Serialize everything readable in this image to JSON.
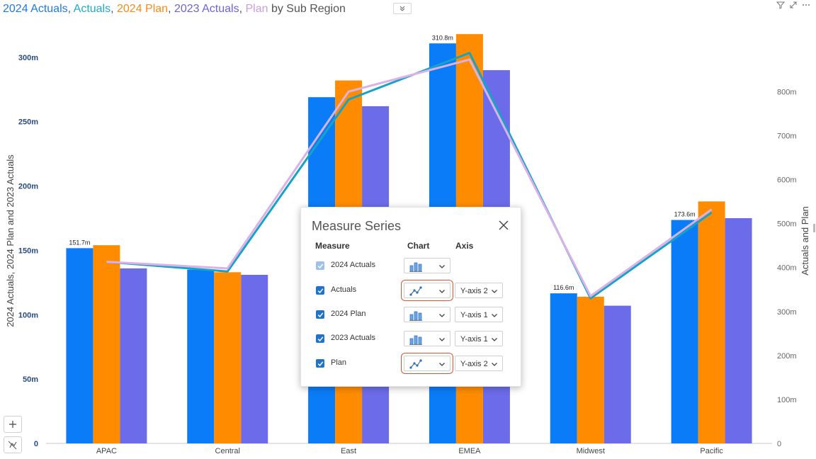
{
  "title": {
    "segments": [
      {
        "text": "2024 Actuals",
        "color": "#1f7ae0"
      },
      {
        "text": ", ",
        "color": "#555555"
      },
      {
        "text": "Actuals",
        "color": "#1faacc"
      },
      {
        "text": ", ",
        "color": "#555555"
      },
      {
        "text": "2024 Plan",
        "color": "#f28c1a"
      },
      {
        "text": ", ",
        "color": "#555555"
      },
      {
        "text": "2023 Actuals",
        "color": "#6c63d8"
      },
      {
        "text": ", ",
        "color": "#555555"
      },
      {
        "text": "Plan",
        "color": "#c99fd8"
      },
      {
        "text": " by Sub Region",
        "color": "#555555"
      }
    ]
  },
  "header_icons": [
    "chevron-double-down-icon",
    "filter-icon",
    "focus-mode-icon",
    "more-options-icon"
  ],
  "chart_data": {
    "type": "bar",
    "categories": [
      "APAC",
      "Central",
      "East",
      "EMEA",
      "Midwest",
      "Pacific"
    ],
    "series": [
      {
        "name": "2024 Actuals",
        "type": "bar",
        "axis": "left",
        "color": "#0b7cf7",
        "values": [
          151.7,
          135,
          269,
          310.8,
          116.6,
          173.6
        ]
      },
      {
        "name": "2024 Plan",
        "type": "bar",
        "axis": "left",
        "color": "#ff8c00",
        "values": [
          154,
          133,
          282,
          318,
          114,
          188
        ]
      },
      {
        "name": "2023 Actuals",
        "type": "bar",
        "axis": "left",
        "color": "#6c6ceb",
        "values": [
          136,
          131,
          262,
          290,
          107,
          175
        ]
      },
      {
        "name": "Actuals",
        "type": "line",
        "axis": "right",
        "color": "#17a2c7",
        "values": [
          413,
          391,
          782,
          888,
          330,
          525
        ]
      },
      {
        "name": "Plan",
        "type": "line",
        "axis": "right",
        "color": "#dab2e8",
        "values": [
          413,
          398,
          800,
          873,
          335,
          532
        ]
      }
    ],
    "data_labels": [
      {
        "category": "APAC",
        "series": "2024 Actuals",
        "text": "151.7m"
      },
      {
        "category": "EMEA",
        "series": "2024 Actuals",
        "text": "310.8m"
      },
      {
        "category": "Midwest",
        "series": "2024 Actuals",
        "text": "116.6m"
      },
      {
        "category": "Pacific",
        "series": "2024 Actuals",
        "text": "173.6m"
      }
    ],
    "y_left": {
      "label": "2024 Actuals, 2024 Plan and 2023 Actuals",
      "ticks": [
        0,
        50,
        100,
        150,
        200,
        250,
        300
      ],
      "tick_labels": [
        "0",
        "50m",
        "100m",
        "150m",
        "200m",
        "250m",
        "300m"
      ],
      "range": [
        0,
        328
      ]
    },
    "y_right": {
      "label": "Actuals and Plan",
      "ticks": [
        0,
        100,
        200,
        300,
        400,
        500,
        600,
        700,
        800
      ],
      "tick_labels": [
        "0",
        "100m",
        "200m",
        "300m",
        "400m",
        "500m",
        "600m",
        "700m",
        "800m"
      ],
      "range": [
        0,
        960
      ]
    },
    "grid": false,
    "legend": "none"
  },
  "dialog": {
    "title": "Measure Series",
    "close_icon": "close-icon",
    "columns": {
      "measure": "Measure",
      "chart": "Chart",
      "axis": "Axis"
    },
    "rows": [
      {
        "label": "2024 Actuals",
        "checked": true,
        "disabled": true,
        "chart_icon": "bar-chart-icon",
        "axis": null,
        "highlight": false
      },
      {
        "label": "Actuals",
        "checked": true,
        "disabled": false,
        "chart_icon": "line-chart-icon",
        "axis": "Y-axis 2",
        "highlight": true
      },
      {
        "label": "2024 Plan",
        "checked": true,
        "disabled": false,
        "chart_icon": "bar-chart-icon",
        "axis": "Y-axis 1",
        "highlight": false
      },
      {
        "label": "2023 Actuals",
        "checked": true,
        "disabled": false,
        "chart_icon": "bar-chart-icon",
        "axis": "Y-axis 1",
        "highlight": false
      },
      {
        "label": "Plan",
        "checked": true,
        "disabled": false,
        "chart_icon": "line-chart-icon",
        "axis": "Y-axis 2",
        "highlight": true
      }
    ]
  },
  "controls": {
    "zoom_icon": "plus-icon",
    "reset_icon": "reset-zoom-icon"
  }
}
